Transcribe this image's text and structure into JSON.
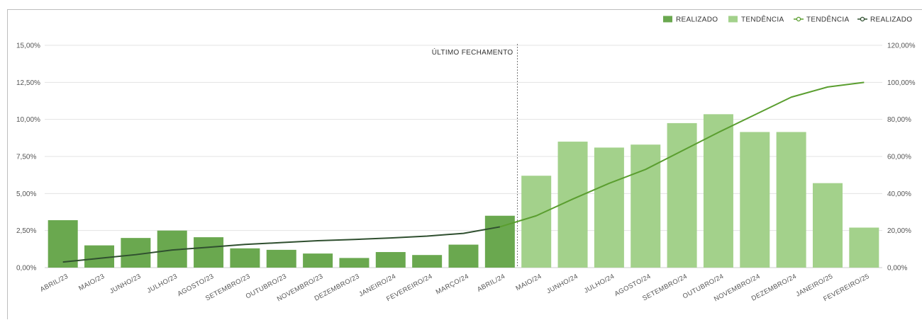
{
  "chart_data": {
    "type": "bar",
    "categories": [
      "ABRIL/23",
      "MAIO/23",
      "JUNHO/23",
      "JULHO/23",
      "AGOSTO/23",
      "SETEMBRO/23",
      "OUTUBRO/23",
      "NOVEMBRO/23",
      "DEZEMBRO/23",
      "JANEIRO/24",
      "FEVEREIRO/24",
      "MARÇO/24",
      "ABRIL/24",
      "MAIO/24",
      "JUNHO/24",
      "JULHO/24",
      "AGOSTO/24",
      "SETEMBRO/24",
      "OUTUBRO/24",
      "NOVEMBRO/24",
      "DEZEMBRO/24",
      "JANEIRO/25",
      "FEVEREIRO/25"
    ],
    "series": [
      {
        "name": "REALIZADO",
        "type": "bar",
        "axis": "left",
        "color": "#6aa84f",
        "values": [
          3.2,
          1.5,
          2.0,
          2.5,
          2.05,
          1.3,
          1.2,
          0.95,
          0.65,
          1.05,
          0.85,
          1.55,
          3.5,
          null,
          null,
          null,
          null,
          null,
          null,
          null,
          null,
          null,
          null
        ]
      },
      {
        "name": "TENDÊNCIA",
        "type": "bar",
        "axis": "left",
        "color": "#a3d18b",
        "values": [
          null,
          null,
          null,
          null,
          null,
          null,
          null,
          null,
          null,
          null,
          null,
          null,
          null,
          6.2,
          8.5,
          8.1,
          8.3,
          9.75,
          10.35,
          9.15,
          9.15,
          5.7,
          2.7
        ]
      },
      {
        "name": "TENDÊNCIA",
        "type": "line",
        "axis": "right",
        "color": "#5a9e2f",
        "values": [
          null,
          null,
          null,
          null,
          null,
          null,
          null,
          null,
          null,
          null,
          null,
          null,
          22,
          28,
          37,
          45.5,
          53,
          63,
          73,
          82.5,
          92,
          97.5,
          100
        ]
      },
      {
        "name": "REALIZADO",
        "type": "line",
        "axis": "right",
        "color": "#2f4f2f",
        "values": [
          3,
          5,
          7,
          9.5,
          11,
          12.5,
          13.5,
          14.5,
          15.2,
          16,
          17,
          18.5,
          22,
          null,
          null,
          null,
          null,
          null,
          null,
          null,
          null,
          null,
          null
        ]
      }
    ],
    "yTicksLeft": [
      "0,00%",
      "2,50%",
      "5,00%",
      "7,50%",
      "10,00%",
      "12,50%",
      "15,00%"
    ],
    "yTicksRight": [
      "0,00%",
      "20,00%",
      "40,00%",
      "60,00%",
      "80,00%",
      "100,00%",
      "120,00%"
    ],
    "yLimLeft": [
      0,
      15
    ],
    "yLimRight": [
      0,
      120
    ],
    "grid": true,
    "legend": "top-right",
    "annotation": {
      "label": "ÚLTIMO FECHAMENTO",
      "category": "ABRIL/24"
    }
  }
}
